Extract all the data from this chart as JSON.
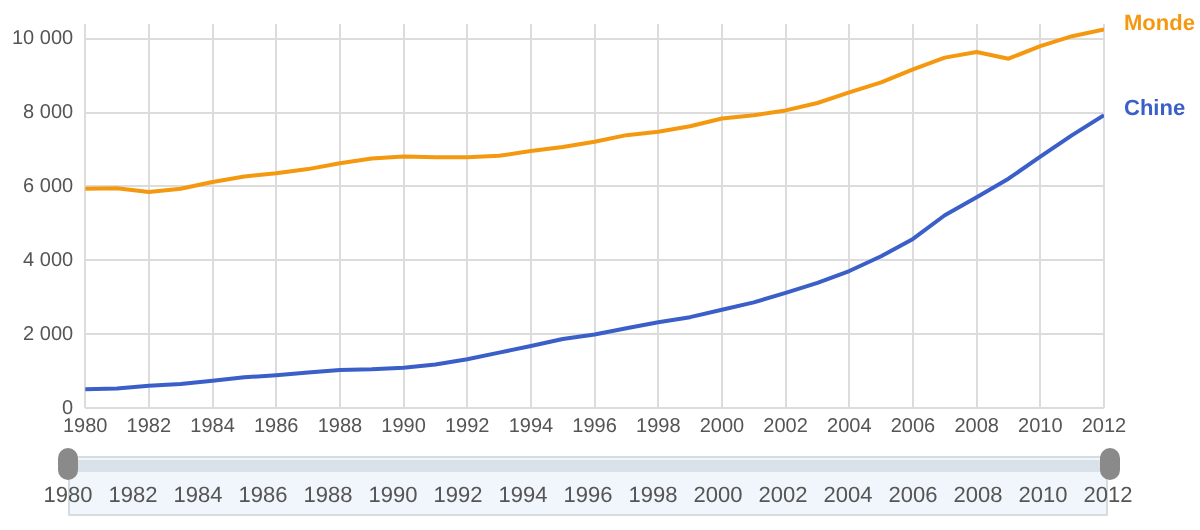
{
  "chart_data": {
    "type": "line",
    "x": [
      1980,
      1981,
      1982,
      1983,
      1984,
      1985,
      1986,
      1987,
      1988,
      1989,
      1990,
      1991,
      1992,
      1993,
      1994,
      1995,
      1996,
      1997,
      1998,
      1999,
      2000,
      2001,
      2002,
      2003,
      2004,
      2005,
      2006,
      2007,
      2008,
      2009,
      2010,
      2011,
      2012
    ],
    "series": [
      {
        "name": "Monde",
        "color": "#f4990f",
        "values": [
          5940,
          5950,
          5850,
          5940,
          6120,
          6270,
          6360,
          6470,
          6630,
          6760,
          6810,
          6790,
          6790,
          6830,
          6960,
          7070,
          7210,
          7390,
          7480,
          7630,
          7840,
          7930,
          8060,
          8260,
          8550,
          8820,
          9170,
          9490,
          9640,
          9460,
          9800,
          10070,
          10250
        ]
      },
      {
        "name": "Chine",
        "color": "#3a5fc8",
        "values": [
          510,
          530,
          600,
          650,
          740,
          830,
          890,
          960,
          1030,
          1050,
          1090,
          1180,
          1320,
          1500,
          1680,
          1870,
          1990,
          2160,
          2320,
          2460,
          2660,
          2860,
          3120,
          3390,
          3710,
          4110,
          4580,
          5220,
          5710,
          6210,
          6810,
          7390,
          7930
        ]
      }
    ],
    "xlim": [
      1980,
      2012
    ],
    "xticks": [
      1980,
      1982,
      1984,
      1986,
      1988,
      1990,
      1992,
      1994,
      1996,
      1998,
      2000,
      2002,
      2004,
      2006,
      2008,
      2010,
      2012
    ],
    "x2lim": [
      1980,
      2012
    ],
    "x2ticks": [
      1980,
      1982,
      1984,
      1986,
      1988,
      1990,
      1992,
      1994,
      1996,
      1998,
      2000,
      2002,
      2004,
      2006,
      2008,
      2010,
      2012
    ],
    "ylim": [
      0,
      10400
    ],
    "yticks": [
      0,
      {
        "value": 2000,
        "label": "2 000"
      },
      {
        "value": 4000,
        "label": "4 000"
      },
      {
        "value": 6000,
        "label": "6 000"
      },
      {
        "value": 8000,
        "label": "8 000"
      },
      {
        "value": 10000,
        "label": "10 000"
      }
    ],
    "grid": true,
    "legend": false,
    "marker": "none",
    "line_style": "solid"
  }
}
